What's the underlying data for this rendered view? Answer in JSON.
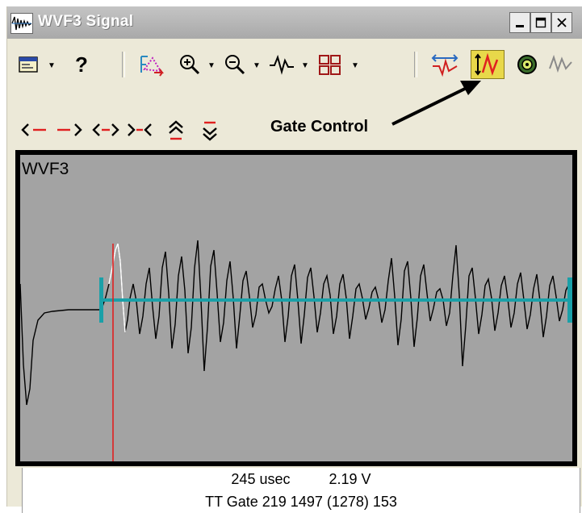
{
  "window": {
    "title": "WVF3 Signal",
    "minimize_label": "_",
    "maximize_label": "□",
    "close_label": "×"
  },
  "toolbar": {
    "help_label": "?",
    "icons": [
      "window-icon",
      "help-icon",
      "cursor-icon",
      "zoom-in-icon",
      "zoom-out-icon",
      "waveform-icon",
      "grid-icon",
      "signal-filter-icon",
      "gate-control-icon",
      "sensor-icon",
      "envelope-icon"
    ]
  },
  "nav": {
    "items": [
      "<-",
      "->",
      "<>",
      "><",
      "≈",
      "≈"
    ]
  },
  "annotation": {
    "label": "Gate Control"
  },
  "plot": {
    "title": "WVF3",
    "background": "#a3a3a3",
    "frame_color": "#000000",
    "trace_color": "#000000",
    "gate_color": "#1aa0a8",
    "cursor_color": "#e02020",
    "highlight_color": "#ffffff"
  },
  "status": {
    "time": "245 usec",
    "voltage": "2.19 V",
    "gate_line": "TT Gate  219   1497  (1278) 153"
  }
}
